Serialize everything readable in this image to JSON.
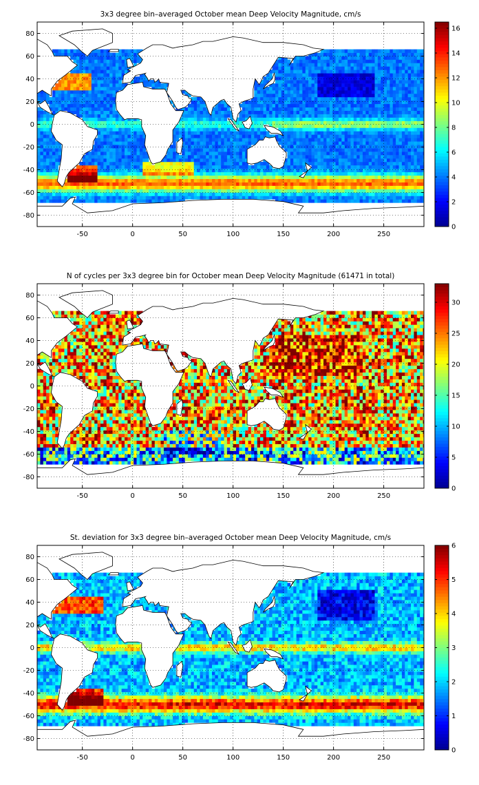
{
  "colormap": [
    "#00008f",
    "#0000ff",
    "#007fff",
    "#00ffff",
    "#7fff7f",
    "#ffff00",
    "#ff7f00",
    "#ff0000",
    "#800000"
  ],
  "chart_data": [
    {
      "type": "heatmap",
      "title": "3x3 degree bin–averaged October mean Deep Velocity Magnitude, cm/s",
      "xlim": [
        -95,
        290
      ],
      "ylim": [
        -90,
        90
      ],
      "x_ticks": [
        -50,
        0,
        50,
        100,
        150,
        200,
        250
      ],
      "y_ticks": [
        -80,
        -60,
        -40,
        -20,
        0,
        20,
        40,
        60,
        80
      ],
      "colorbar": {
        "min": 0,
        "max": 16.5,
        "ticks": [
          0,
          2,
          4,
          6,
          8,
          10,
          12,
          14,
          16
        ]
      },
      "grid": true,
      "bin_size_deg": 3,
      "pattern": "speed"
    },
    {
      "type": "heatmap",
      "title": "N of cycles per 3x3 degree bin for October mean Deep Velocity Magnitude (61471 in total)",
      "xlim": [
        -95,
        290
      ],
      "ylim": [
        -90,
        90
      ],
      "x_ticks": [
        -50,
        0,
        50,
        100,
        150,
        200,
        250
      ],
      "y_ticks": [
        -80,
        -60,
        -40,
        -20,
        0,
        20,
        40,
        60,
        80
      ],
      "colorbar": {
        "min": 0,
        "max": 33,
        "ticks": [
          0,
          5,
          10,
          15,
          20,
          25,
          30
        ]
      },
      "grid": true,
      "bin_size_deg": 3,
      "pattern": "count"
    },
    {
      "type": "heatmap",
      "title": "St. deviation for 3x3 degree bin–averaged October mean Deep Velocity Magnitude, cm/s",
      "xlim": [
        -95,
        290
      ],
      "ylim": [
        -90,
        90
      ],
      "x_ticks": [
        -50,
        0,
        50,
        100,
        150,
        200,
        250
      ],
      "y_ticks": [
        -80,
        -60,
        -40,
        -20,
        0,
        20,
        40,
        60,
        80
      ],
      "colorbar": {
        "min": 0,
        "max": 6,
        "ticks": [
          0,
          1,
          2,
          3,
          4,
          5,
          6
        ]
      },
      "grid": true,
      "bin_size_deg": 3,
      "pattern": "std"
    }
  ]
}
